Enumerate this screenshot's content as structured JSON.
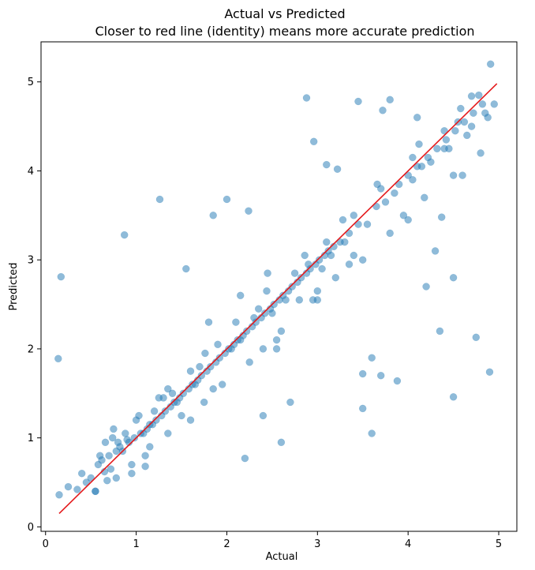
{
  "chart_data": {
    "type": "scatter",
    "title": "Actual vs Predicted",
    "subtitle": "Closer to red line (identity) means more accurate prediction",
    "xlabel": "Actual",
    "ylabel": "Predicted",
    "xlim": [
      -0.05,
      5.2
    ],
    "ylim": [
      -0.05,
      5.45
    ],
    "x_ticks": [
      0,
      1,
      2,
      3,
      4,
      5
    ],
    "x_tick_labels": [
      "0",
      "1",
      "2",
      "3",
      "4",
      "5"
    ],
    "y_ticks": [
      0,
      1,
      2,
      3,
      4,
      5
    ],
    "y_tick_labels": [
      "0",
      "1",
      "2",
      "3",
      "4",
      "5"
    ],
    "grid": false,
    "point_color": "#1f77b4",
    "point_alpha": 0.5,
    "identity_line": {
      "x": [
        0.15,
        4.98
      ],
      "y": [
        0.15,
        4.98
      ],
      "color": "#e41a1c"
    },
    "series": [
      {
        "x": [
          0.15,
          0.17,
          0.14,
          0.87,
          1.26,
          2.88,
          3.45,
          3.72,
          3.8,
          4.55,
          4.7,
          4.91,
          3.22,
          2.0,
          2.24,
          1.85,
          2.96,
          3.1,
          4.5,
          4.5,
          3.5,
          3.6,
          4.9,
          4.75,
          3.88,
          4.37,
          2.4,
          2.6,
          2.2,
          0.65,
          0.72,
          0.55,
          0.68,
          0.95,
          1.1,
          2.7,
          3.6,
          3.5,
          3.7,
          4.35,
          4.2,
          4.3,
          3.95,
          4.6,
          4.8,
          4.1,
          2.45,
          1.55,
          1.8,
          2.55,
          0.6,
          0.75,
          0.8,
          0.5,
          1.3,
          1.0,
          3.0,
          3.2,
          3.4,
          2.8,
          4.05,
          4.15,
          4.45,
          4.65,
          4.88,
          4.95,
          3.3,
          2.9,
          2.3,
          1.7,
          1.4,
          1.2,
          0.9,
          0.45,
          0.35,
          0.25,
          0.4,
          0.58,
          1.05,
          1.65,
          2.15,
          2.5,
          3.05,
          3.55,
          3.85,
          4.25,
          4.4,
          4.7,
          4.85,
          3.75,
          3.15,
          2.65,
          2.05,
          1.45,
          1.15,
          0.85,
          0.62,
          0.7,
          0.78,
          0.82,
          0.92,
          0.98,
          1.08,
          1.12,
          1.18,
          1.22,
          1.28,
          1.32,
          1.38,
          1.42,
          1.48,
          1.52,
          1.58,
          1.62,
          1.68,
          1.72,
          1.78,
          1.82,
          1.88,
          1.92,
          1.98,
          2.02,
          2.08,
          2.12,
          2.18,
          2.22,
          2.28,
          2.32,
          2.38,
          2.42,
          2.48,
          2.52,
          2.58,
          2.62,
          2.68,
          2.72,
          2.78,
          2.82,
          2.88,
          2.92,
          2.98,
          3.02,
          3.08,
          3.12,
          3.18,
          3.25,
          3.35,
          3.45,
          3.65,
          3.9,
          4.0,
          4.1,
          4.22,
          4.32,
          4.42,
          4.52,
          4.62,
          4.72,
          4.82,
          0.88,
          1.25,
          1.6,
          1.9,
          2.35,
          2.75,
          3.1,
          3.4,
          3.7,
          4.05,
          4.4,
          4.78,
          0.66,
          0.74,
          1.03,
          1.35,
          1.76,
          2.1,
          2.44,
          2.86,
          3.28,
          3.66,
          4.12,
          4.58,
          1.95,
          2.25,
          2.55,
          1.5,
          1.75,
          2.95,
          3.35,
          0.95,
          1.15,
          1.85,
          2.6,
          3.8,
          4.18,
          2.15,
          1.35,
          0.78,
          0.55,
          1.1,
          1.6,
          2.4,
          3.0,
          3.5,
          4.0,
          4.5
        ],
        "y": [
          0.36,
          2.81,
          1.89,
          3.28,
          3.68,
          4.82,
          4.78,
          4.68,
          4.8,
          4.55,
          4.84,
          5.2,
          4.02,
          3.68,
          3.55,
          3.5,
          4.33,
          4.07,
          1.46,
          2.8,
          1.33,
          1.05,
          1.74,
          2.13,
          1.64,
          3.48,
          1.25,
          0.95,
          0.77,
          0.62,
          0.65,
          0.4,
          0.52,
          0.6,
          0.68,
          1.4,
          1.9,
          1.72,
          1.7,
          2.2,
          2.7,
          3.1,
          3.5,
          3.95,
          4.2,
          4.6,
          2.85,
          2.9,
          2.3,
          2.0,
          0.8,
          1.1,
          0.95,
          0.55,
          1.45,
          1.2,
          2.65,
          2.8,
          3.05,
          2.55,
          3.9,
          4.05,
          4.25,
          4.4,
          4.6,
          4.75,
          3.2,
          2.95,
          2.35,
          1.8,
          1.5,
          1.3,
          0.98,
          0.5,
          0.42,
          0.45,
          0.6,
          0.7,
          1.05,
          1.6,
          2.1,
          2.4,
          2.9,
          3.4,
          3.75,
          4.1,
          4.25,
          4.5,
          4.65,
          3.65,
          3.05,
          2.55,
          2.0,
          1.4,
          1.15,
          0.85,
          0.75,
          0.8,
          0.85,
          0.9,
          0.95,
          1.0,
          1.05,
          1.1,
          1.15,
          1.2,
          1.25,
          1.3,
          1.35,
          1.4,
          1.45,
          1.5,
          1.55,
          1.6,
          1.65,
          1.7,
          1.75,
          1.8,
          1.85,
          1.9,
          1.95,
          2.0,
          2.05,
          2.1,
          2.15,
          2.2,
          2.25,
          2.3,
          2.35,
          2.4,
          2.45,
          2.5,
          2.55,
          2.6,
          2.65,
          2.7,
          2.75,
          2.8,
          2.85,
          2.9,
          2.95,
          3.0,
          3.05,
          3.1,
          3.15,
          3.2,
          3.3,
          3.4,
          3.6,
          3.85,
          3.95,
          4.05,
          4.15,
          4.25,
          4.35,
          4.45,
          4.55,
          4.65,
          4.75,
          1.05,
          1.45,
          1.75,
          2.05,
          2.45,
          2.85,
          3.2,
          3.5,
          3.8,
          4.15,
          4.45,
          4.85,
          0.95,
          1.0,
          1.25,
          1.55,
          1.95,
          2.3,
          2.65,
          3.05,
          3.45,
          3.85,
          4.3,
          4.7,
          1.6,
          1.85,
          2.1,
          1.25,
          1.4,
          2.55,
          2.95,
          0.7,
          0.9,
          1.55,
          2.2,
          3.3,
          3.7,
          2.6,
          1.05,
          0.55,
          0.4,
          0.8,
          1.2,
          2.0,
          2.55,
          3.0,
          3.45,
          3.95
        ]
      }
    ]
  }
}
